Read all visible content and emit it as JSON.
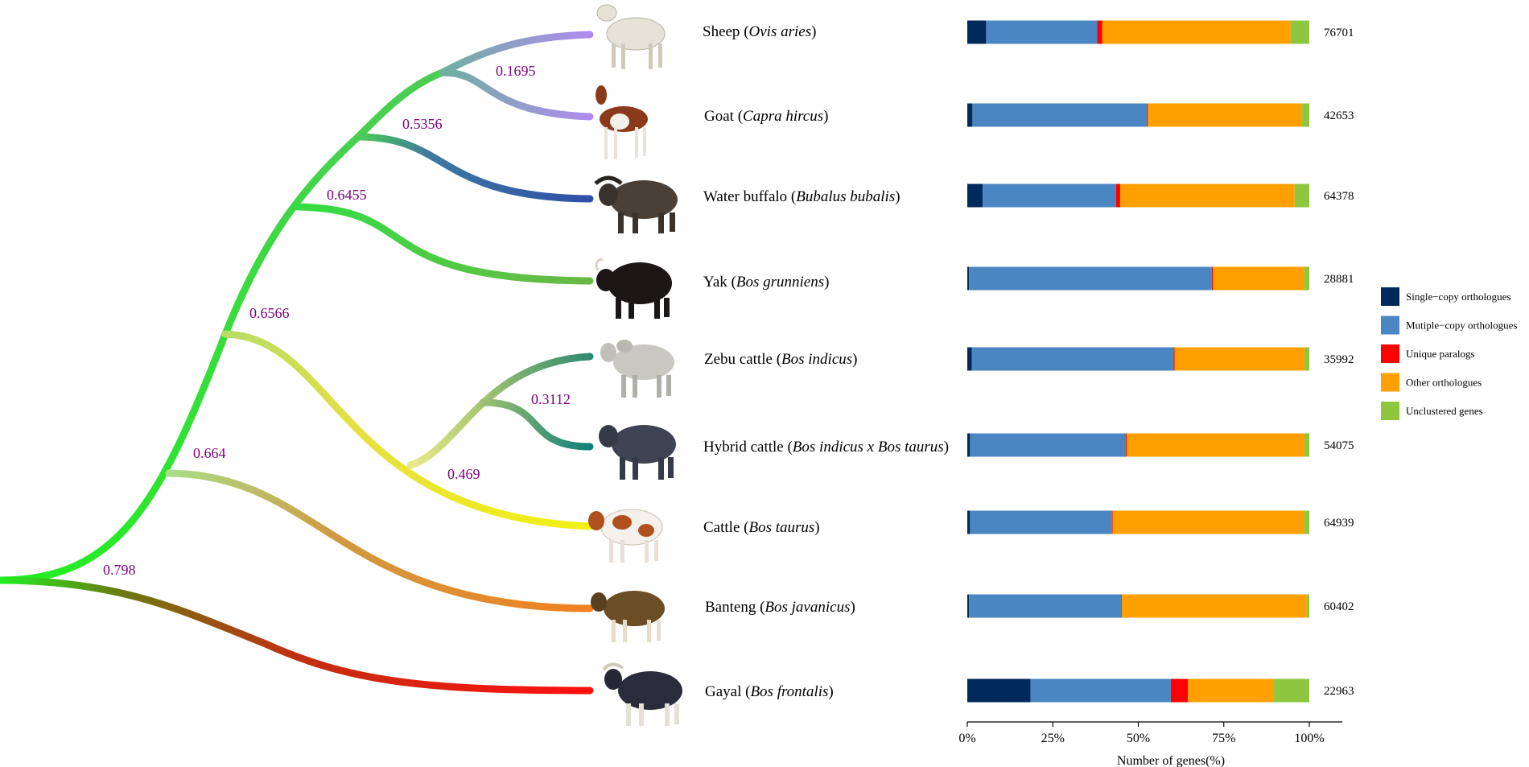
{
  "chart_data": {
    "type": "bar",
    "orientation": "horizontal",
    "stacked": true,
    "xlabel": "Number of genes(%)",
    "ticks": [
      "0%",
      "25%",
      "50%",
      "75%",
      "100%"
    ],
    "xlim": [
      0,
      100
    ],
    "legend_position": "right",
    "series_colors": [
      "#002a5c",
      "#4a86c2",
      "#ff0000",
      "#ffa000",
      "#8ec63f"
    ],
    "legend": [
      "Single−copy orthologues",
      "Mutiple−copy orthologues",
      "Unique paralogs",
      "Other orthologues",
      "Unclustered genes"
    ],
    "species": [
      {
        "common": "Sheep",
        "sci": "Ovis aries",
        "total": "76701",
        "values": [
          5.5,
          32.5,
          1.5,
          55,
          5.5
        ]
      },
      {
        "common": "Goat",
        "sci": "Capra hircus",
        "total": "42653",
        "values": [
          1.5,
          51,
          0.3,
          45,
          2.2
        ]
      },
      {
        "common": "Water buffalo",
        "sci": "Bubalus bubalis",
        "total": "64378",
        "values": [
          4.5,
          39,
          1.2,
          51,
          4.3
        ]
      },
      {
        "common": "Yak",
        "sci": "Bos grunniens",
        "total": "28881",
        "values": [
          0.5,
          71,
          0.3,
          26.7,
          1.5
        ]
      },
      {
        "common": "Zebu cattle",
        "sci": "Bos indicus",
        "total": "35992",
        "values": [
          1.3,
          59,
          0.3,
          38,
          1.4
        ]
      },
      {
        "common": "Hybrid cattle",
        "sci": "Bos indicus x Bos taurus",
        "total": "54075",
        "values": [
          0.8,
          45.5,
          0.3,
          52,
          1.4
        ]
      },
      {
        "common": "Cattle",
        "sci": "Bos taurus",
        "total": "64939",
        "values": [
          0.8,
          41.5,
          0.2,
          56,
          1.5
        ]
      },
      {
        "common": "Banteng",
        "sci": "Bos javanicus",
        "total": "60402",
        "values": [
          0.5,
          44.5,
          0.2,
          54,
          0.8
        ]
      },
      {
        "common": "Gayal",
        "sci": "Bos frontalis",
        "total": "22963",
        "values": [
          18.5,
          41,
          5,
          25,
          10.5
        ]
      }
    ],
    "branch_labels": [
      "0.1695",
      "0.5356",
      "0.6455",
      "0.6566",
      "0.3112",
      "0.469",
      "0.664",
      "0.798"
    ]
  }
}
